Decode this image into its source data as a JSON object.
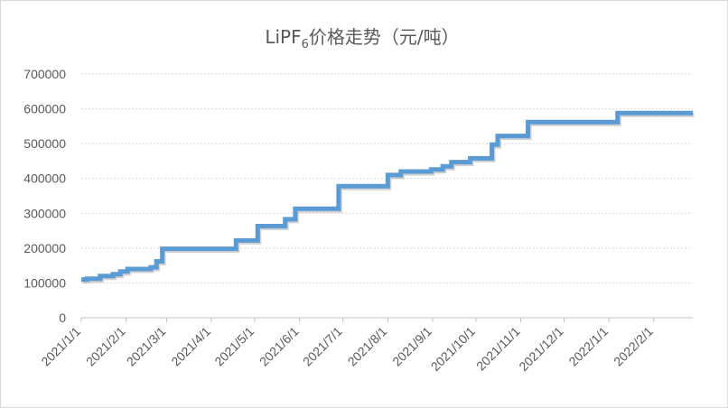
{
  "chart_data": {
    "type": "line",
    "title_main": "LiPF",
    "title_sub": "6",
    "title_rest": "价格走势（元/吨）",
    "ylim": [
      0,
      700000
    ],
    "yticks": [
      "0",
      "100000",
      "200000",
      "300000",
      "400000",
      "500000",
      "600000",
      "700000"
    ],
    "xticks": [
      "2021/1/1",
      "2021/2/1",
      "2021/3/1",
      "2021/4/1",
      "2021/5/1",
      "2021/6/1",
      "2021/7/1",
      "2021/8/1",
      "2021/9/1",
      "2021/10/1",
      "2021/11/1",
      "2021/12/1",
      "2022/1/1",
      "2022/2/1"
    ],
    "x_range": [
      "2021-01-01",
      "2022-02-28"
    ],
    "grid": true,
    "series": [
      {
        "color": "#5b9bd5",
        "points": [
          [
            "2021-01-01",
            110000
          ],
          [
            "2021-01-05",
            110000
          ],
          [
            "2021-01-05",
            112000
          ],
          [
            "2021-01-14",
            112000
          ],
          [
            "2021-01-14",
            120000
          ],
          [
            "2021-01-23",
            120000
          ],
          [
            "2021-01-23",
            125000
          ],
          [
            "2021-01-28",
            125000
          ],
          [
            "2021-01-28",
            133000
          ],
          [
            "2021-02-02",
            133000
          ],
          [
            "2021-02-02",
            140000
          ],
          [
            "2021-02-18",
            140000
          ],
          [
            "2021-02-18",
            145000
          ],
          [
            "2021-02-22",
            145000
          ],
          [
            "2021-02-22",
            162000
          ],
          [
            "2021-02-26",
            162000
          ],
          [
            "2021-02-26",
            198000
          ],
          [
            "2021-04-18",
            198000
          ],
          [
            "2021-04-18",
            222000
          ],
          [
            "2021-05-03",
            222000
          ],
          [
            "2021-05-03",
            263000
          ],
          [
            "2021-05-22",
            263000
          ],
          [
            "2021-05-22",
            283000
          ],
          [
            "2021-05-29",
            283000
          ],
          [
            "2021-05-29",
            313000
          ],
          [
            "2021-06-28",
            313000
          ],
          [
            "2021-06-28",
            378000
          ],
          [
            "2021-08-01",
            378000
          ],
          [
            "2021-08-01",
            410000
          ],
          [
            "2021-08-10",
            410000
          ],
          [
            "2021-08-10",
            420000
          ],
          [
            "2021-08-31",
            420000
          ],
          [
            "2021-08-31",
            426000
          ],
          [
            "2021-09-08",
            426000
          ],
          [
            "2021-09-08",
            435000
          ],
          [
            "2021-09-14",
            435000
          ],
          [
            "2021-09-14",
            447000
          ],
          [
            "2021-09-27",
            447000
          ],
          [
            "2021-09-27",
            458000
          ],
          [
            "2021-10-12",
            458000
          ],
          [
            "2021-10-12",
            497000
          ],
          [
            "2021-10-16",
            497000
          ],
          [
            "2021-10-16",
            522000
          ],
          [
            "2021-11-06",
            522000
          ],
          [
            "2021-11-06",
            562000
          ],
          [
            "2022-01-07",
            562000
          ],
          [
            "2022-01-07",
            588000
          ],
          [
            "2022-02-28",
            588000
          ]
        ]
      }
    ]
  }
}
